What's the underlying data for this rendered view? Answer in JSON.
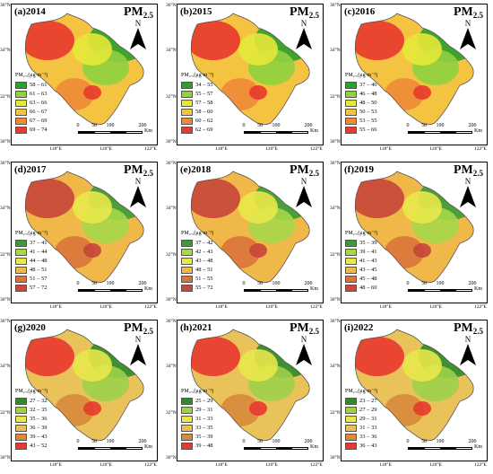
{
  "units_title": "PM",
  "units_sub": "2.5",
  "north": "N",
  "legend_title": "PM₂.₅(μg·m⁻³)",
  "scale_labels": [
    "0",
    "50",
    "100",
    "200"
  ],
  "scale_unit": "Km",
  "lat_ticks": [
    "36°N",
    "34°N",
    "32°N",
    "30°N"
  ],
  "lon_ticks": [
    "118°E",
    "120°E",
    "122°E"
  ],
  "panels": [
    {
      "label": "(a)2014",
      "legend": [
        {
          "range": "58 – 61",
          "color": "#2ca02c"
        },
        {
          "range": "61 – 63",
          "color": "#8fd13f"
        },
        {
          "range": "63 – 66",
          "color": "#e6e83a"
        },
        {
          "range": "66 – 67",
          "color": "#f5c342"
        },
        {
          "range": "67 – 69",
          "color": "#f08a3a"
        },
        {
          "range": "69 – 74",
          "color": "#e8382f"
        }
      ]
    },
    {
      "label": "(b)2015",
      "legend": [
        {
          "range": "34 – 55",
          "color": "#2ca02c"
        },
        {
          "range": "55 – 57",
          "color": "#8fd13f"
        },
        {
          "range": "57 – 58",
          "color": "#e6e83a"
        },
        {
          "range": "58 – 60",
          "color": "#f5c342"
        },
        {
          "range": "60 – 62",
          "color": "#f08a3a"
        },
        {
          "range": "62 – 69",
          "color": "#e8382f"
        }
      ]
    },
    {
      "label": "(c)2016",
      "legend": [
        {
          "range": "37 – 46",
          "color": "#2ca02c"
        },
        {
          "range": "46 – 48",
          "color": "#8fd13f"
        },
        {
          "range": "48 – 50",
          "color": "#e6e83a"
        },
        {
          "range": "50 – 53",
          "color": "#f5c342"
        },
        {
          "range": "53 – 55",
          "color": "#f08a3a"
        },
        {
          "range": "55 – 66",
          "color": "#e8382f"
        }
      ]
    },
    {
      "label": "(d)2017",
      "legend": [
        {
          "range": "37 – 41",
          "color": "#3a9a3a"
        },
        {
          "range": "41 – 44",
          "color": "#a6d84a"
        },
        {
          "range": "44 – 48",
          "color": "#e9e84a"
        },
        {
          "range": "48 – 51",
          "color": "#f0b848"
        },
        {
          "range": "51 – 57",
          "color": "#d9743a"
        },
        {
          "range": "57 – 72",
          "color": "#c8463a"
        }
      ]
    },
    {
      "label": "(e)2018",
      "legend": [
        {
          "range": "37 – 42",
          "color": "#3a9a3a"
        },
        {
          "range": "42 – 43",
          "color": "#a6d84a"
        },
        {
          "range": "43 – 48",
          "color": "#e9e84a"
        },
        {
          "range": "48 – 51",
          "color": "#f0b848"
        },
        {
          "range": "51 – 55",
          "color": "#d9743a"
        },
        {
          "range": "55 – 72",
          "color": "#c8463a"
        }
      ]
    },
    {
      "label": "(f)2019",
      "legend": [
        {
          "range": "35 – 39",
          "color": "#3a9a3a"
        },
        {
          "range": "39 – 41",
          "color": "#a6d84a"
        },
        {
          "range": "41 – 43",
          "color": "#e9e84a"
        },
        {
          "range": "43 – 45",
          "color": "#f0b848"
        },
        {
          "range": "45 – 48",
          "color": "#d9743a"
        },
        {
          "range": "48 – 60",
          "color": "#c8463a"
        }
      ]
    },
    {
      "label": "(g)2020",
      "legend": [
        {
          "range": "27 – 32",
          "color": "#2e8a2e"
        },
        {
          "range": "32 – 35",
          "color": "#9fd04a"
        },
        {
          "range": "35 – 36",
          "color": "#e8e84a"
        },
        {
          "range": "36 – 39",
          "color": "#e9c25a"
        },
        {
          "range": "39 – 43",
          "color": "#d88a3c"
        },
        {
          "range": "43 – 52",
          "color": "#e8382f"
        }
      ]
    },
    {
      "label": "(h)2021",
      "legend": [
        {
          "range": "25 – 29",
          "color": "#2e8a2e"
        },
        {
          "range": "29 – 31",
          "color": "#9fd04a"
        },
        {
          "range": "31 – 33",
          "color": "#e8e84a"
        },
        {
          "range": "33 – 35",
          "color": "#e9c25a"
        },
        {
          "range": "35 – 39",
          "color": "#d88a3c"
        },
        {
          "range": "39 – 48",
          "color": "#e8382f"
        }
      ]
    },
    {
      "label": "(i)2022",
      "legend": [
        {
          "range": "23 – 27",
          "color": "#2e8a2e"
        },
        {
          "range": "27 – 29",
          "color": "#9fd04a"
        },
        {
          "range": "29 – 31",
          "color": "#e8e84a"
        },
        {
          "range": "31 – 33",
          "color": "#e9c25a"
        },
        {
          "range": "33 – 36",
          "color": "#d88a3c"
        },
        {
          "range": "36 – 43",
          "color": "#e8382f"
        }
      ]
    }
  ]
}
